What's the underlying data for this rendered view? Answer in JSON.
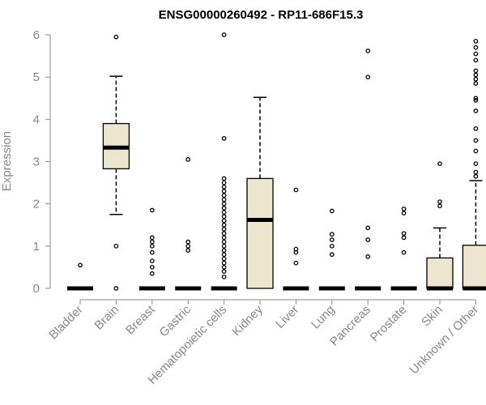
{
  "chart_data": {
    "type": "boxplot",
    "title": "ENSG00000260492 - RP11-686F15.3",
    "ylabel": "Expression",
    "xlabel": "",
    "ylim": [
      0,
      6
    ],
    "yticks": [
      0,
      1,
      2,
      3,
      4,
      5,
      6
    ],
    "categories": [
      "Bladder",
      "Brain",
      "Breast",
      "Gastric",
      "Hematopoietic cells",
      "Kidney",
      "Liver",
      "Lung",
      "Pancreas",
      "Prostate",
      "Skin",
      "Unknown / Other"
    ],
    "boxes": [
      {
        "q1": 0,
        "median": 0,
        "q3": 0,
        "whisker_low": 0,
        "whisker_high": 0,
        "outliers": [
          0.55
        ]
      },
      {
        "q1": 2.83,
        "median": 3.33,
        "q3": 3.9,
        "whisker_low": 1.75,
        "whisker_high": 5.02,
        "outliers": [
          5.95,
          1.0,
          0
        ]
      },
      {
        "q1": 0,
        "median": 0,
        "q3": 0,
        "whisker_low": 0,
        "whisker_high": 0,
        "outliers": [
          1.85,
          1.2,
          1.1,
          1.0,
          0.85,
          0.65,
          0.5,
          0.35
        ]
      },
      {
        "q1": 0,
        "median": 0,
        "q3": 0,
        "whisker_low": 0,
        "whisker_high": 0,
        "outliers": [
          3.05,
          1.1,
          1.0,
          0.9
        ]
      },
      {
        "q1": 0,
        "median": 0,
        "q3": 0,
        "whisker_low": 0,
        "whisker_high": 0,
        "outliers": [
          6.0,
          3.55,
          2.6,
          2.5,
          2.4,
          2.3,
          2.2,
          2.1,
          2.0,
          1.9,
          1.8,
          1.7,
          1.6,
          1.5,
          1.4,
          1.3,
          1.2,
          1.1,
          1.0,
          0.9,
          0.8,
          0.7,
          0.6,
          0.5,
          0.4,
          0.27
        ]
      },
      {
        "q1": 0,
        "median": 1.62,
        "q3": 2.6,
        "whisker_low": 0,
        "whisker_high": 4.52,
        "outliers": []
      },
      {
        "q1": 0,
        "median": 0,
        "q3": 0,
        "whisker_low": 0,
        "whisker_high": 0,
        "outliers": [
          2.33,
          0.93,
          0.85,
          0.6
        ]
      },
      {
        "q1": 0,
        "median": 0,
        "q3": 0,
        "whisker_low": 0,
        "whisker_high": 0,
        "outliers": [
          1.83,
          1.28,
          1.15,
          1.0,
          0.8
        ]
      },
      {
        "q1": 0,
        "median": 0,
        "q3": 0,
        "whisker_low": 0,
        "whisker_high": 0,
        "outliers": [
          5.62,
          5.0,
          1.43,
          1.15,
          0.75
        ]
      },
      {
        "q1": 0,
        "median": 0,
        "q3": 0,
        "whisker_low": 0,
        "whisker_high": 0,
        "outliers": [
          1.88,
          1.78,
          1.3,
          1.2,
          0.85
        ]
      },
      {
        "q1": 0,
        "median": 0,
        "q3": 0.72,
        "whisker_low": 0,
        "whisker_high": 1.43,
        "outliers": [
          2.95,
          2.05,
          1.95
        ]
      },
      {
        "q1": 0,
        "median": 0,
        "q3": 1.02,
        "whisker_low": 0,
        "whisker_high": 2.55,
        "outliers": [
          5.85,
          5.7,
          5.55,
          5.4,
          5.15,
          5.05,
          4.95,
          4.85,
          4.5,
          4.45,
          4.2,
          3.78,
          3.5,
          3.25,
          2.95,
          2.75,
          2.65
        ]
      }
    ]
  }
}
